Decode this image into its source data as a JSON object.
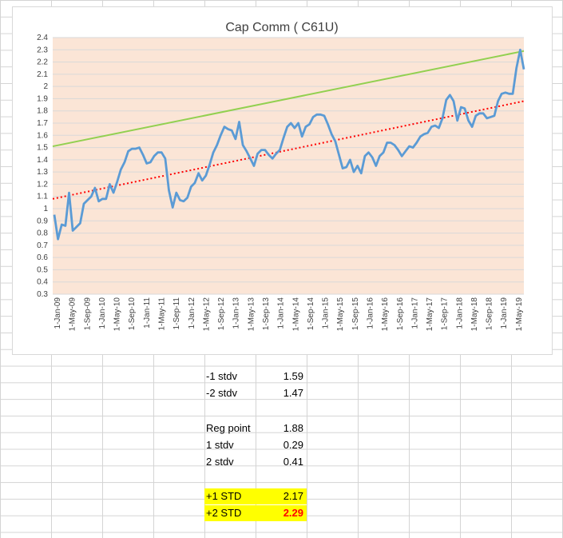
{
  "chart_data": {
    "type": "line",
    "title": "Cap Comm ( C61U)",
    "xlabel": "",
    "ylabel": "",
    "ylim": [
      0.3,
      2.4
    ],
    "yticks": [
      0.3,
      0.4,
      0.5,
      0.6,
      0.7,
      0.8,
      0.9,
      1,
      1.1,
      1.2,
      1.3,
      1.4,
      1.5,
      1.6,
      1.7,
      1.8,
      1.9,
      2,
      2.1,
      2.2,
      2.3,
      2.4
    ],
    "x_labels": [
      "1-Jan-09",
      "1-May-09",
      "1-Sep-09",
      "1-Jan-10",
      "1-May-10",
      "1-Sep-10",
      "1-Jan-11",
      "1-May-11",
      "1-Sep-11",
      "1-Jan-12",
      "1-May-12",
      "1-Sep-12",
      "1-Jan-13",
      "1-May-13",
      "1-Sep-13",
      "1-Jan-14",
      "1-May-14",
      "1-Sep-14",
      "1-Jan-15",
      "1-May-15",
      "1-Sep-15",
      "1-Jan-16",
      "1-May-16",
      "1-Sep-16",
      "1-Jan-17",
      "1-May-17",
      "1-Sep-17",
      "1-Jan-18",
      "1-May-18",
      "1-Sep-18",
      "1-Jan-19",
      "1-May-19"
    ],
    "plot_background": "#fbe5d6",
    "grid": true,
    "series": [
      {
        "color": "#5b9bd5",
        "style": "solid",
        "values": [
          0.95,
          0.75,
          0.87,
          0.86,
          1.13,
          0.82,
          0.85,
          0.88,
          1.04,
          1.07,
          1.1,
          1.17,
          1.06,
          1.08,
          1.08,
          1.2,
          1.13,
          1.22,
          1.32,
          1.38,
          1.47,
          1.49,
          1.49,
          1.5,
          1.44,
          1.37,
          1.38,
          1.43,
          1.46,
          1.46,
          1.41,
          1.15,
          1.01,
          1.13,
          1.07,
          1.06,
          1.09,
          1.18,
          1.21,
          1.29,
          1.23,
          1.27,
          1.36,
          1.46,
          1.52,
          1.6,
          1.67,
          1.65,
          1.64,
          1.57,
          1.71,
          1.52,
          1.47,
          1.41,
          1.35,
          1.45,
          1.48,
          1.48,
          1.44,
          1.41,
          1.45,
          1.48,
          1.58,
          1.67,
          1.7,
          1.66,
          1.7,
          1.59,
          1.67,
          1.69,
          1.75,
          1.77,
          1.77,
          1.76,
          1.69,
          1.61,
          1.55,
          1.44,
          1.33,
          1.34,
          1.4,
          1.3,
          1.35,
          1.29,
          1.43,
          1.46,
          1.42,
          1.35,
          1.43,
          1.46,
          1.54,
          1.54,
          1.52,
          1.48,
          1.43,
          1.47,
          1.51,
          1.5,
          1.54,
          1.59,
          1.61,
          1.62,
          1.67,
          1.68,
          1.66,
          1.74,
          1.89,
          1.93,
          1.88,
          1.72,
          1.83,
          1.82,
          1.72,
          1.67,
          1.76,
          1.78,
          1.78,
          1.74,
          1.75,
          1.76,
          1.88,
          1.94,
          1.95,
          1.94,
          1.94,
          2.15,
          2.3,
          2.14
        ]
      },
      {
        "color": "#ff0000",
        "style": "dotted",
        "values_endpoints": [
          1.08,
          1.88
        ]
      },
      {
        "color": "#92d050",
        "style": "solid",
        "values_endpoints": [
          1.51,
          2.29
        ]
      }
    ]
  },
  "table": {
    "rows": [
      {
        "label": "-1 stdv",
        "value": "1.59"
      },
      {
        "label": "-2 stdv",
        "value": "1.47"
      },
      {
        "label": "",
        "value": ""
      },
      {
        "label": "Reg point",
        "value": "1.88"
      },
      {
        "label": "1 stdv",
        "value": "0.29"
      },
      {
        "label": "2 stdv",
        "value": "0.41"
      },
      {
        "label": "",
        "value": ""
      },
      {
        "label": "+1 STD",
        "value": "2.17"
      },
      {
        "label": "+2 STD",
        "value": "2.29"
      }
    ]
  }
}
